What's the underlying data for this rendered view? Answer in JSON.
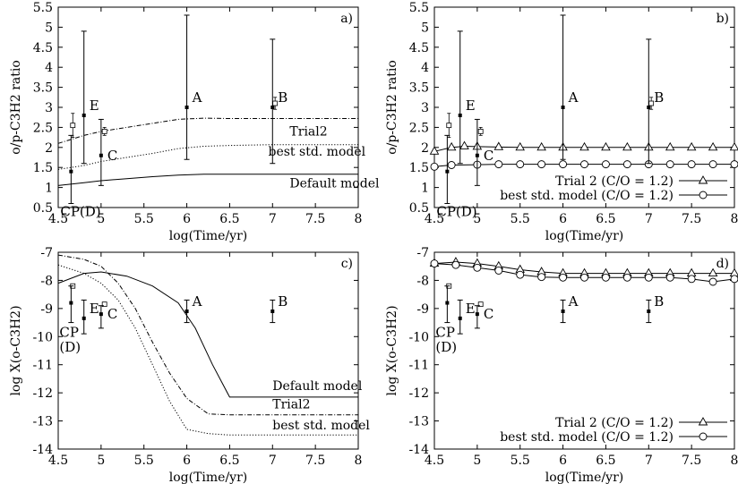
{
  "chart_data": [
    {
      "panel": "a)",
      "type": "line",
      "xlabel": "log(Time/yr)",
      "ylabel": "o/p-C3H2 ratio",
      "xlim": [
        4.5,
        8
      ],
      "ylim": [
        0.5,
        5.5
      ],
      "xticks": [
        "4.5",
        "5",
        "5.5",
        "6",
        "6.5",
        "7",
        "7.5",
        "8"
      ],
      "yticks": [
        "0.5",
        "1",
        "1.5",
        "2",
        "2.5",
        "3",
        "3.5",
        "4",
        "4.5",
        "5",
        "5.5"
      ],
      "series": [
        {
          "name": "Trial2",
          "style": "dashdot",
          "x": [
            4.5,
            4.8,
            5.0,
            5.3,
            5.6,
            5.9,
            6.2,
            6.5,
            7.0,
            8.0
          ],
          "y": [
            2.1,
            2.3,
            2.4,
            2.5,
            2.6,
            2.7,
            2.73,
            2.72,
            2.72,
            2.72
          ]
        },
        {
          "name": "best std. model",
          "style": "dotted",
          "x": [
            4.5,
            4.8,
            5.0,
            5.3,
            5.6,
            5.9,
            6.2,
            6.5,
            7.0,
            8.0
          ],
          "y": [
            1.45,
            1.55,
            1.65,
            1.75,
            1.85,
            1.97,
            2.03,
            2.05,
            2.07,
            2.07
          ]
        },
        {
          "name": "Default model",
          "style": "solid",
          "x": [
            4.5,
            4.8,
            5.0,
            5.3,
            5.6,
            5.9,
            6.2,
            6.5,
            7.0,
            8.0
          ],
          "y": [
            1.05,
            1.12,
            1.17,
            1.22,
            1.27,
            1.31,
            1.33,
            1.33,
            1.33,
            1.33
          ]
        }
      ],
      "observations": [
        {
          "label": "CP(D)",
          "x": 4.65,
          "y": 1.4,
          "low": 0.6,
          "high": 2.3
        },
        {
          "label": "E",
          "x": 4.8,
          "y": 2.8,
          "low": 1.6,
          "high": 4.9
        },
        {
          "label": "C",
          "x": 5.0,
          "y": 1.8,
          "low": 1.05,
          "high": 2.7
        },
        {
          "label": "A",
          "x": 6.0,
          "y": 3.0,
          "low": 1.7,
          "high": 5.3
        },
        {
          "label": "B",
          "x": 7.0,
          "y": 3.0,
          "low": 1.6,
          "high": 4.7
        }
      ],
      "open_markers": [
        {
          "x": 4.67,
          "y": 2.55,
          "low": 2.25,
          "high": 2.85
        },
        {
          "x": 5.04,
          "y": 2.4,
          "low": 2.3,
          "high": 2.5
        },
        {
          "x": 7.03,
          "y": 3.1,
          "low": 2.95,
          "high": 3.25
        }
      ],
      "annotations": [
        {
          "text": "Trial2",
          "x": 7.2,
          "y": 2.3
        },
        {
          "text": "best std. model",
          "x": 6.95,
          "y": 1.8
        },
        {
          "text": "Default model",
          "x": 7.2,
          "y": 1.0
        }
      ]
    },
    {
      "panel": "b)",
      "type": "line",
      "xlabel": "log(Time/yr)",
      "ylabel": "o/p-C3H2 ratio",
      "xlim": [
        4.5,
        8
      ],
      "ylim": [
        0.5,
        5.5
      ],
      "xticks": [
        "4.5",
        "5",
        "5.5",
        "6",
        "6.5",
        "7",
        "7.5",
        "8"
      ],
      "yticks": [
        "0.5",
        "1",
        "1.5",
        "2",
        "2.5",
        "3",
        "3.5",
        "4",
        "4.5",
        "5",
        "5.5"
      ],
      "legend_position": "bottom-right",
      "series": [
        {
          "name": "Trial 2 (C/O = 1.2)",
          "style": "solid",
          "marker": "triangle",
          "x": [
            4.5,
            4.7,
            4.85,
            5.0,
            5.25,
            5.5,
            5.75,
            6.0,
            6.25,
            6.5,
            6.75,
            7.0,
            7.25,
            7.5,
            7.75,
            8.0
          ],
          "y": [
            1.9,
            2.0,
            2.03,
            2.02,
            2.01,
            2.0,
            2.0,
            2.0,
            2.0,
            2.0,
            2.0,
            2.0,
            2.0,
            2.0,
            2.0,
            2.0
          ]
        },
        {
          "name": "best std. model (C/O = 1.2)",
          "style": "solid",
          "marker": "circle",
          "x": [
            4.5,
            4.7,
            5.0,
            5.25,
            5.5,
            5.75,
            6.0,
            6.25,
            6.5,
            6.75,
            7.0,
            7.25,
            7.5,
            7.75,
            8.0
          ],
          "y": [
            1.52,
            1.56,
            1.57,
            1.58,
            1.58,
            1.58,
            1.58,
            1.58,
            1.58,
            1.58,
            1.58,
            1.58,
            1.58,
            1.58,
            1.58
          ]
        }
      ],
      "observations": [
        {
          "label": "CP(D)",
          "x": 4.65,
          "y": 1.4,
          "low": 0.6,
          "high": 2.3
        },
        {
          "label": "E",
          "x": 4.8,
          "y": 2.8,
          "low": 1.6,
          "high": 4.9
        },
        {
          "label": "C",
          "x": 5.0,
          "y": 1.8,
          "low": 1.05,
          "high": 2.7
        },
        {
          "label": "A",
          "x": 6.0,
          "y": 3.0,
          "low": 1.7,
          "high": 5.3
        },
        {
          "label": "B",
          "x": 7.0,
          "y": 3.0,
          "low": 1.6,
          "high": 4.7
        }
      ],
      "open_markers": [
        {
          "x": 4.67,
          "y": 2.55,
          "low": 2.25,
          "high": 2.85
        },
        {
          "x": 5.04,
          "y": 2.4,
          "low": 2.3,
          "high": 2.5
        },
        {
          "x": 7.03,
          "y": 3.1,
          "low": 2.95,
          "high": 3.25
        }
      ]
    },
    {
      "panel": "c)",
      "type": "line",
      "xlabel": "log(Time/yr)",
      "ylabel": "log X(o-C3H2)",
      "xlim": [
        4.5,
        8
      ],
      "ylim": [
        -14,
        -7
      ],
      "xticks": [
        "4.5",
        "5",
        "5.5",
        "6",
        "6.5",
        "7",
        "7.5",
        "8"
      ],
      "yticks": [
        "-14",
        "-13",
        "-12",
        "-11",
        "-10",
        "-9",
        "-8",
        "-7"
      ],
      "series": [
        {
          "name": "Default model",
          "style": "solid",
          "x": [
            4.5,
            4.8,
            5.0,
            5.3,
            5.6,
            5.9,
            6.1,
            6.3,
            6.5,
            7.0,
            8.0
          ],
          "y": [
            -8.1,
            -7.75,
            -7.7,
            -7.85,
            -8.2,
            -8.8,
            -9.7,
            -11.0,
            -12.15,
            -12.15,
            -12.15
          ]
        },
        {
          "name": "Trial2",
          "style": "dashdot",
          "x": [
            4.5,
            4.8,
            5.0,
            5.2,
            5.4,
            5.6,
            5.8,
            6.0,
            6.25,
            6.5,
            7.0,
            8.0
          ],
          "y": [
            -7.1,
            -7.25,
            -7.5,
            -8.1,
            -9.0,
            -10.2,
            -11.3,
            -12.2,
            -12.75,
            -12.78,
            -12.78,
            -12.78
          ]
        },
        {
          "name": "best std. model",
          "style": "dotted",
          "x": [
            4.5,
            4.8,
            5.0,
            5.2,
            5.4,
            5.6,
            5.8,
            6.0,
            6.25,
            6.5,
            7.0,
            8.0
          ],
          "y": [
            -7.45,
            -7.75,
            -8.1,
            -8.7,
            -9.7,
            -11.0,
            -12.3,
            -13.3,
            -13.45,
            -13.5,
            -13.5,
            -13.5
          ]
        }
      ],
      "observations": [
        {
          "label": "CP\n(D)",
          "x": 4.65,
          "y": -8.8,
          "low": -9.5,
          "high": -8.2
        },
        {
          "label": "E",
          "x": 4.8,
          "y": -9.35,
          "low": -9.9,
          "high": -8.7
        },
        {
          "label": "C",
          "x": 5.0,
          "y": -9.2,
          "low": -9.7,
          "high": -8.9
        },
        {
          "label": "A",
          "x": 6.0,
          "y": -9.1,
          "low": -9.5,
          "high": -8.7
        },
        {
          "label": "B",
          "x": 7.0,
          "y": -9.1,
          "low": -9.5,
          "high": -8.7
        }
      ],
      "open_markers": [
        {
          "x": 4.67,
          "y": -8.2,
          "low": -8.2,
          "high": -8.2
        },
        {
          "x": 5.04,
          "y": -8.85,
          "low": -8.85,
          "high": -8.85
        }
      ],
      "annotations": [
        {
          "text": "Default model",
          "x": 7.0,
          "y": -11.9
        },
        {
          "text": "Trial2",
          "x": 7.0,
          "y": -12.55
        },
        {
          "text": "best std. model",
          "x": 7.0,
          "y": -13.3
        }
      ]
    },
    {
      "panel": "d)",
      "type": "line",
      "xlabel": "log(Time/yr)",
      "ylabel": "log X(o-C3H2)",
      "xlim": [
        4.5,
        8
      ],
      "ylim": [
        -14,
        -7
      ],
      "xticks": [
        "4.5",
        "5",
        "5.5",
        "6",
        "6.5",
        "7",
        "7.5",
        "8"
      ],
      "yticks": [
        "-14",
        "-13",
        "-12",
        "-11",
        "-10",
        "-9",
        "-8",
        "-7"
      ],
      "legend_position": "bottom-right",
      "series": [
        {
          "name": "Trial 2 (C/O = 1.2)",
          "style": "solid",
          "marker": "triangle",
          "x": [
            4.5,
            4.75,
            5.0,
            5.25,
            5.5,
            5.75,
            6.0,
            6.25,
            6.5,
            6.75,
            7.0,
            7.25,
            7.5,
            7.75,
            8.0
          ],
          "y": [
            -7.4,
            -7.35,
            -7.4,
            -7.5,
            -7.62,
            -7.7,
            -7.75,
            -7.75,
            -7.75,
            -7.75,
            -7.75,
            -7.75,
            -7.75,
            -7.75,
            -7.75
          ]
        },
        {
          "name": "best std. model (C/O = 1.2)",
          "style": "solid",
          "marker": "circle",
          "x": [
            4.5,
            4.75,
            5.0,
            5.25,
            5.5,
            5.75,
            6.0,
            6.25,
            6.5,
            6.75,
            7.0,
            7.25,
            7.5,
            7.75,
            8.0
          ],
          "y": [
            -7.4,
            -7.45,
            -7.55,
            -7.65,
            -7.8,
            -7.88,
            -7.9,
            -7.9,
            -7.9,
            -7.9,
            -7.9,
            -7.9,
            -7.95,
            -8.05,
            -7.95
          ]
        }
      ],
      "observations": [
        {
          "label": "CP\n(D)",
          "x": 4.65,
          "y": -8.8,
          "low": -9.5,
          "high": -8.2
        },
        {
          "label": "E",
          "x": 4.8,
          "y": -9.35,
          "low": -9.9,
          "high": -8.7
        },
        {
          "label": "C",
          "x": 5.0,
          "y": -9.2,
          "low": -9.7,
          "high": -8.9
        },
        {
          "label": "A",
          "x": 6.0,
          "y": -9.1,
          "low": -9.5,
          "high": -8.7
        },
        {
          "label": "B",
          "x": 7.0,
          "y": -9.1,
          "low": -9.5,
          "high": -8.7
        }
      ],
      "open_markers": [
        {
          "x": 4.67,
          "y": -8.2,
          "low": -8.2,
          "high": -8.2
        },
        {
          "x": 5.04,
          "y": -8.85,
          "low": -8.85,
          "high": -8.85
        }
      ]
    }
  ]
}
